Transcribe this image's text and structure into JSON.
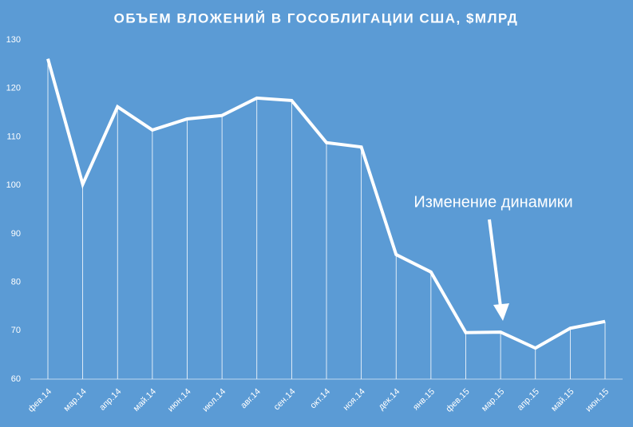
{
  "chart_data": {
    "type": "line",
    "title": "ОБЪЕМ ВЛОЖЕНИЙ В ГОСОБЛИГАЦИИ США, $МЛРД",
    "annotation": "Изменение динамики",
    "categories": [
      "фев.14",
      "мар.14",
      "апр.14",
      "май.14",
      "июн.14",
      "июл.14",
      "авг.14",
      "сен.14",
      "окт.14",
      "ноя.14",
      "дек.14",
      "янв.15",
      "фев.15",
      "мар.15",
      "апр.15",
      "май.15",
      "июн.15"
    ],
    "values": [
      126.1,
      100.2,
      116.2,
      111.4,
      113.7,
      114.4,
      118.0,
      117.5,
      108.8,
      107.9,
      85.7,
      82.1,
      69.6,
      69.7,
      66.4,
      70.5,
      71.9
    ],
    "color": "#ffffff",
    "drop_lines": true,
    "ylim": [
      60,
      130
    ],
    "yticks": [
      60,
      70,
      80,
      90,
      100,
      110,
      120,
      130
    ]
  }
}
